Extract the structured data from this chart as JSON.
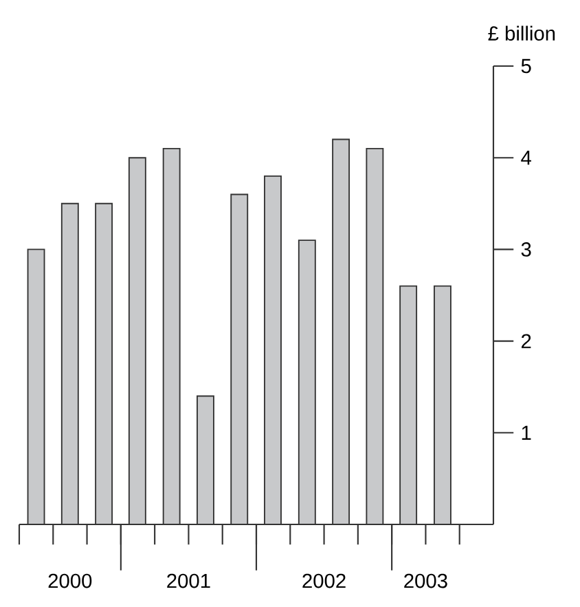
{
  "chart_data": {
    "type": "bar",
    "ylabel": "£ billion",
    "x": [
      "2000-05-16",
      "2000-08-16",
      "2000-11-16",
      "2001-02-15",
      "2001-05-16",
      "2001-08-16",
      "2001-11-16",
      "2002-02-15",
      "2002-05-16",
      "2002-08-16",
      "2002-11-16",
      "2003-02-15",
      "2003-05-16"
    ],
    "values": [
      3.0,
      3.5,
      3.5,
      4.0,
      4.1,
      1.4,
      3.6,
      3.8,
      3.1,
      4.2,
      4.1,
      2.6,
      2.6
    ],
    "color": "#c8c9cb",
    "xlim": [
      "2000-04-01",
      "2003-10-01"
    ],
    "ylim": [
      0,
      5
    ],
    "xticks": [
      {
        "value": "2000-04-01",
        "label": null
      },
      {
        "value": "2000-07-01",
        "label": null
      },
      {
        "value": "2000-10-01",
        "label": null
      },
      {
        "value": "2001-01-01",
        "label": null
      },
      {
        "value": "2001-04-01",
        "label": null
      },
      {
        "value": "2001-07-01",
        "label": null
      },
      {
        "value": "2001-10-01",
        "label": null
      },
      {
        "value": "2002-01-01",
        "label": null
      },
      {
        "value": "2002-04-01",
        "label": null
      },
      {
        "value": "2002-07-01",
        "label": null
      },
      {
        "value": "2002-10-01",
        "label": null
      },
      {
        "value": "2003-01-01",
        "label": null
      },
      {
        "value": "2003-04-01",
        "label": null
      },
      {
        "value": "2003-07-01",
        "label": null
      },
      {
        "value": "2000-08-16",
        "label": "2000"
      },
      {
        "value": "2001-07-01",
        "label": "2001"
      },
      {
        "value": "2002-07-01",
        "label": "2002"
      },
      {
        "value": "2003-04-01",
        "label": "2003"
      }
    ],
    "yticks": [
      1,
      2,
      3,
      4,
      5
    ]
  }
}
